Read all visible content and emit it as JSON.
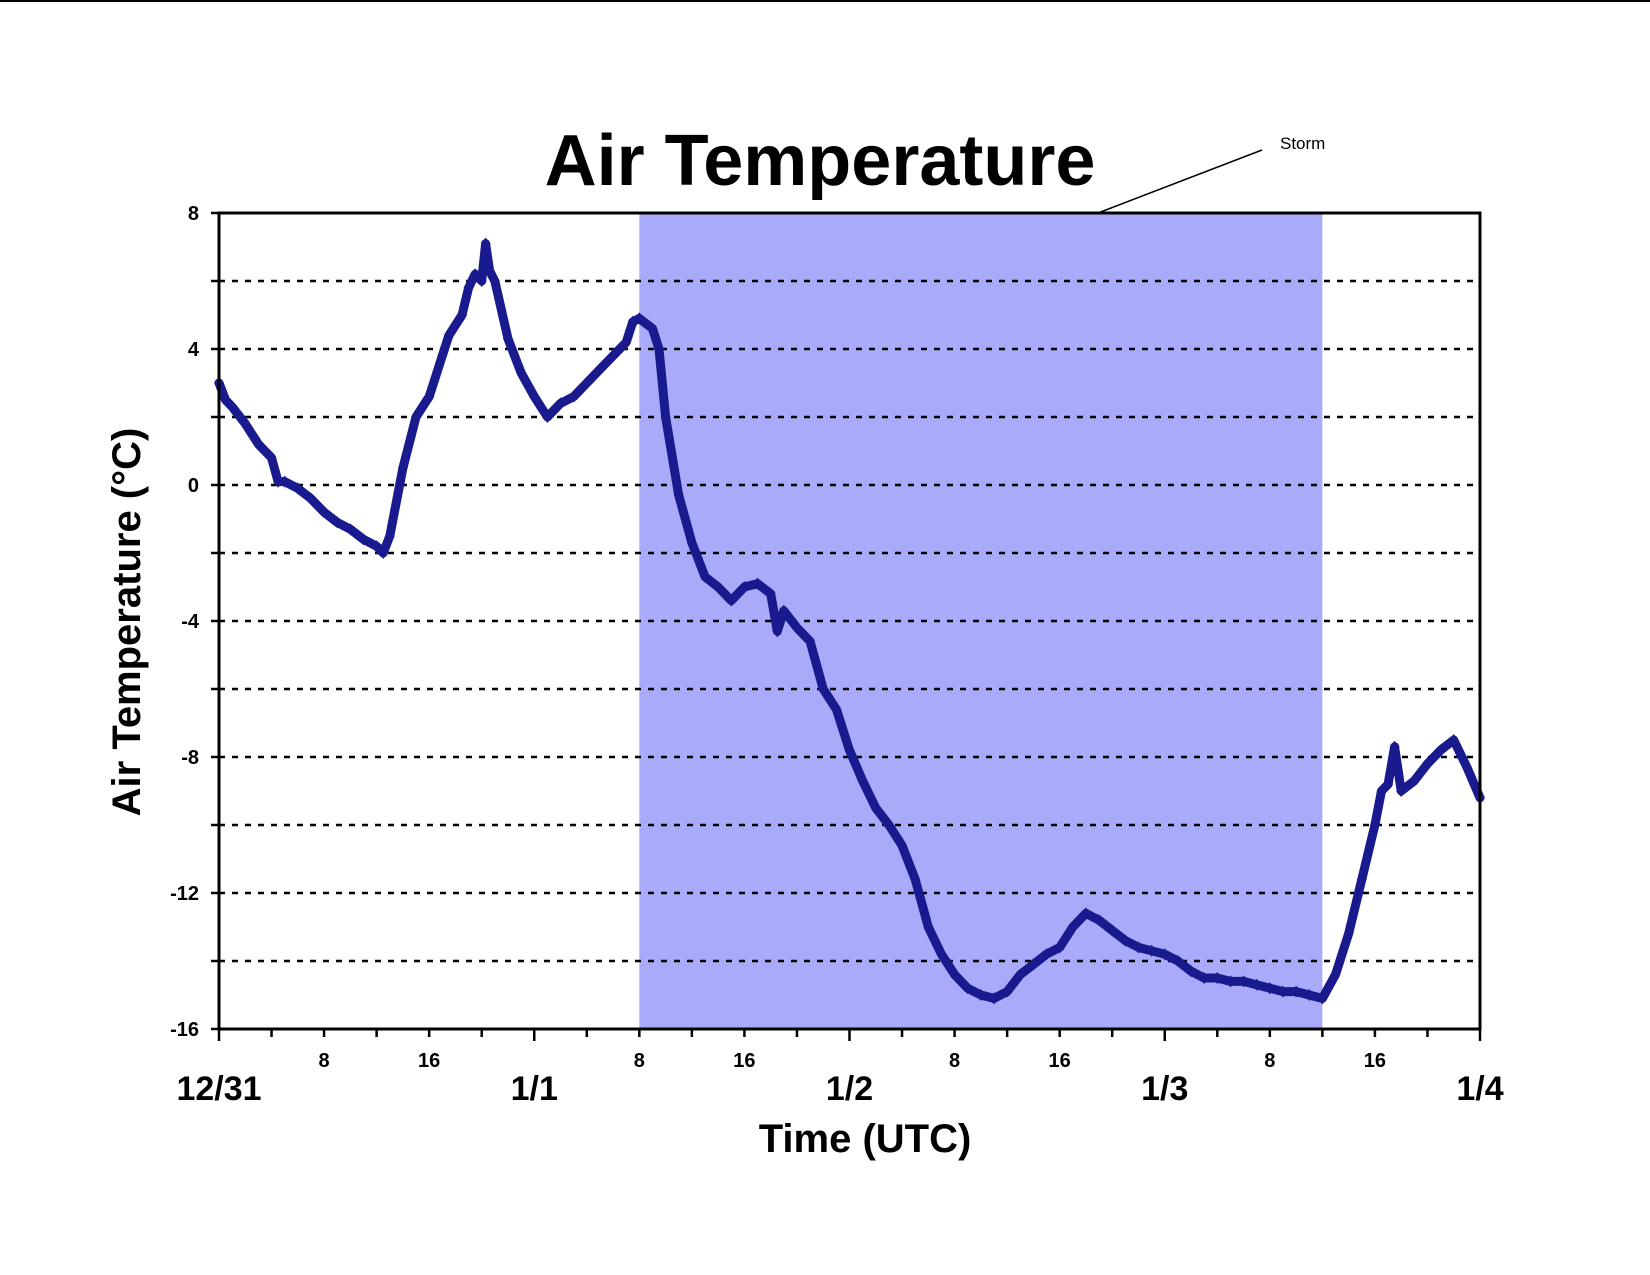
{
  "chart_data": {
    "type": "line",
    "title": "Air Temperature",
    "xlabel": "Time (UTC)",
    "ylabel": "Air Temperature (°C)",
    "x_start": "12/31 00:00",
    "x_end": "1/4 00:00",
    "xlim_hours": [
      0,
      96
    ],
    "ylim": [
      -16,
      8
    ],
    "y_ticks": [
      8,
      4,
      0,
      -4,
      -8,
      -12,
      -16
    ],
    "x_major_ticks": [
      {
        "label": "12/31",
        "hour": 0
      },
      {
        "label": "1/1",
        "hour": 24
      },
      {
        "label": "1/2",
        "hour": 48
      },
      {
        "label": "1/3",
        "hour": 72
      },
      {
        "label": "1/4",
        "hour": 96
      }
    ],
    "x_minor_ticks": [
      {
        "label": "8",
        "hour": 8
      },
      {
        "label": "16",
        "hour": 16
      },
      {
        "label": "8",
        "hour": 32
      },
      {
        "label": "16",
        "hour": 40
      },
      {
        "label": "8",
        "hour": 56
      },
      {
        "label": "16",
        "hour": 64
      },
      {
        "label": "8",
        "hour": 80
      },
      {
        "label": "16",
        "hour": 88
      }
    ],
    "grid": "horizontal dotted",
    "shaded_region": {
      "label": "Storm",
      "start_hour": 32,
      "end_hour": 84,
      "color": "#a9aaf9"
    },
    "series": [
      {
        "color": "#1a1a8f",
        "points": [
          [
            0,
            3.0
          ],
          [
            0.5,
            2.5
          ],
          [
            1,
            2.3
          ],
          [
            2,
            1.8
          ],
          [
            3,
            1.2
          ],
          [
            4,
            0.8
          ],
          [
            4.5,
            0.1
          ],
          [
            5,
            0.1
          ],
          [
            6,
            -0.1
          ],
          [
            7,
            -0.4
          ],
          [
            8,
            -0.8
          ],
          [
            9,
            -1.1
          ],
          [
            10,
            -1.3
          ],
          [
            11,
            -1.6
          ],
          [
            12,
            -1.8
          ],
          [
            12.5,
            -2.0
          ],
          [
            13,
            -1.5
          ],
          [
            14,
            0.5
          ],
          [
            15,
            2.0
          ],
          [
            16,
            2.6
          ],
          [
            17,
            3.8
          ],
          [
            17.5,
            4.4
          ],
          [
            18,
            4.7
          ],
          [
            18.5,
            5.0
          ],
          [
            19,
            5.8
          ],
          [
            19.5,
            6.2
          ],
          [
            20,
            6.0
          ],
          [
            20.3,
            7.1
          ],
          [
            20.6,
            6.3
          ],
          [
            21,
            6.0
          ],
          [
            22,
            4.3
          ],
          [
            23,
            3.3
          ],
          [
            24,
            2.6
          ],
          [
            25,
            2.0
          ],
          [
            26,
            2.4
          ],
          [
            27,
            2.6
          ],
          [
            28,
            3.0
          ],
          [
            29,
            3.4
          ],
          [
            30,
            3.8
          ],
          [
            31,
            4.2
          ],
          [
            31.5,
            4.8
          ],
          [
            32,
            4.9
          ],
          [
            33,
            4.6
          ],
          [
            33.5,
            4.0
          ],
          [
            34,
            2.0
          ],
          [
            35,
            -0.3
          ],
          [
            36,
            -1.7
          ],
          [
            37,
            -2.7
          ],
          [
            38,
            -3.0
          ],
          [
            39,
            -3.4
          ],
          [
            40,
            -3.0
          ],
          [
            41,
            -2.9
          ],
          [
            42,
            -3.2
          ],
          [
            42.5,
            -4.3
          ],
          [
            43,
            -3.7
          ],
          [
            44,
            -4.2
          ],
          [
            45,
            -4.6
          ],
          [
            46,
            -6.0
          ],
          [
            47,
            -6.6
          ],
          [
            48,
            -7.8
          ],
          [
            49,
            -8.7
          ],
          [
            50,
            -9.5
          ],
          [
            51,
            -10.0
          ],
          [
            52,
            -10.6
          ],
          [
            53,
            -11.6
          ],
          [
            54,
            -13.0
          ],
          [
            55,
            -13.8
          ],
          [
            56,
            -14.4
          ],
          [
            57,
            -14.8
          ],
          [
            58,
            -15.0
          ],
          [
            59,
            -15.1
          ],
          [
            60,
            -14.9
          ],
          [
            61,
            -14.4
          ],
          [
            62,
            -14.1
          ],
          [
            63,
            -13.8
          ],
          [
            64,
            -13.6
          ],
          [
            65,
            -13.0
          ],
          [
            66,
            -12.6
          ],
          [
            67,
            -12.8
          ],
          [
            68,
            -13.1
          ],
          [
            69,
            -13.4
          ],
          [
            70,
            -13.6
          ],
          [
            71,
            -13.7
          ],
          [
            72,
            -13.8
          ],
          [
            73,
            -14.0
          ],
          [
            74,
            -14.3
          ],
          [
            75,
            -14.5
          ],
          [
            76,
            -14.5
          ],
          [
            77,
            -14.6
          ],
          [
            78,
            -14.6
          ],
          [
            79,
            -14.7
          ],
          [
            80,
            -14.8
          ],
          [
            81,
            -14.9
          ],
          [
            82,
            -14.9
          ],
          [
            83,
            -15.0
          ],
          [
            84,
            -15.1
          ],
          [
            85,
            -14.4
          ],
          [
            86,
            -13.2
          ],
          [
            87,
            -11.6
          ],
          [
            88,
            -10.0
          ],
          [
            88.5,
            -9.0
          ],
          [
            89,
            -8.8
          ],
          [
            89.5,
            -7.7
          ],
          [
            90,
            -9.0
          ],
          [
            91,
            -8.7
          ],
          [
            92,
            -8.2
          ],
          [
            93,
            -7.8
          ],
          [
            94,
            -7.5
          ],
          [
            95,
            -8.3
          ],
          [
            96,
            -9.2
          ]
        ]
      }
    ]
  },
  "annotation": {
    "text": "Storm"
  },
  "colors": {
    "line": "#1a1a8f",
    "storm_shade": "#a9aaf9",
    "axis": "#000000",
    "grid": "#000000"
  }
}
